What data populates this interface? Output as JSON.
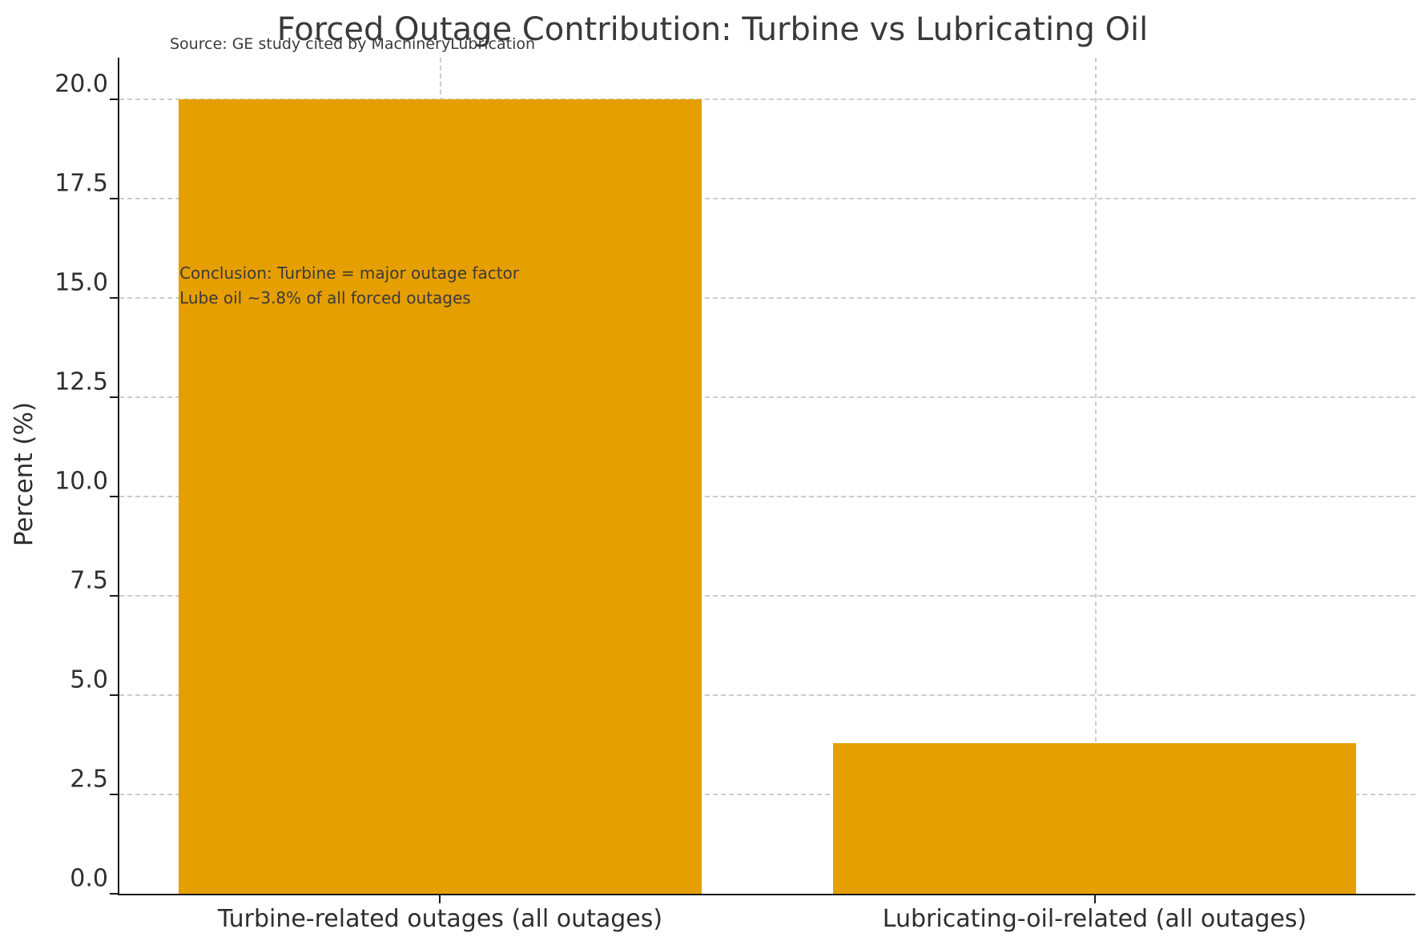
{
  "chart_data": {
    "type": "bar",
    "title": "Forced Outage Contribution: Turbine vs Lubricating Oil",
    "source_note": "Source: GE study cited by MachineryLubrication",
    "annotation": [
      "Conclusion: Turbine = major outage factor",
      "Lube oil ~3.8% of all forced outages"
    ],
    "categories": [
      "Turbine-related outages (all outages)",
      "Lubricating-oil-related (all outages)"
    ],
    "values": [
      20.0,
      3.8
    ],
    "xlabel": "",
    "ylabel": "Percent (%)",
    "ylim": [
      0,
      21.05
    ],
    "yticks": [
      0.0,
      2.5,
      5.0,
      7.5,
      10.0,
      12.5,
      15.0,
      17.5,
      20.0
    ],
    "ytick_labels": [
      "0.0",
      "2.5",
      "5.0",
      "7.5",
      "10.0",
      "12.5",
      "15.0",
      "17.5",
      "20.0"
    ],
    "legend": null,
    "grid": true,
    "grid_style": "dashed",
    "bar_color": "#E69F00",
    "grid_color": "#cccccc",
    "axis_color": "#1a1a1a",
    "text_color": "#2e2e2e"
  }
}
